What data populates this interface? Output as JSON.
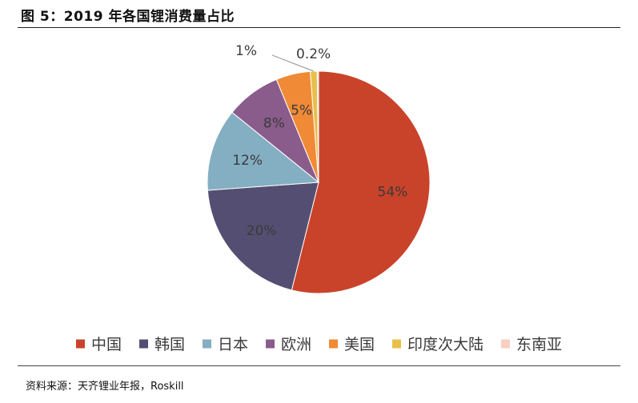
{
  "header": {
    "title": "图 5：2019 年各国锂消费量占比"
  },
  "footer": {
    "source": "资料来源：天齐锂业年报，Roskill"
  },
  "chart_data": {
    "type": "pie",
    "slices": [
      {
        "name": "中国",
        "value": 54,
        "label": "54%",
        "color": "#c9432a"
      },
      {
        "name": "韩国",
        "value": 20,
        "label": "20%",
        "color": "#544f72"
      },
      {
        "name": "日本",
        "value": 12,
        "label": "12%",
        "color": "#84aec2"
      },
      {
        "name": "欧洲",
        "value": 8,
        "label": "8%",
        "color": "#8a5c8c"
      },
      {
        "name": "美国",
        "value": 5,
        "label": "5%",
        "color": "#f08a36"
      },
      {
        "name": "印度次大陆",
        "value": 1,
        "label": "1%",
        "color": "#e8bf4a"
      },
      {
        "name": "东南亚",
        "value": 0.2,
        "label": "0.2%",
        "color": "#f9cfc0"
      }
    ],
    "legend_position": "bottom"
  }
}
